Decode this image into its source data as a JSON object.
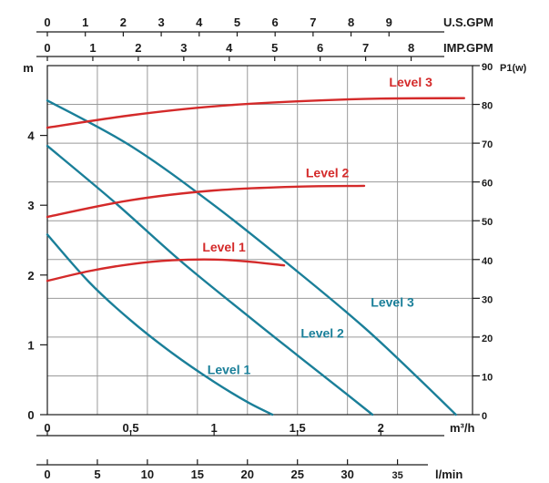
{
  "chart_data": {
    "type": "line",
    "title": "",
    "colors": {
      "head": "#1a7f99",
      "power": "#d42a2a",
      "grid": "#9a9a9a",
      "axis": "#1a1a1a"
    },
    "axes": {
      "x_m3h": {
        "label": "m³/h",
        "range": [
          0,
          2.55
        ],
        "ticks": [
          "0",
          "0.5",
          "1",
          "1.5",
          "2"
        ]
      },
      "x_lmin": {
        "label": "l/min",
        "range": [
          0,
          42.5
        ],
        "ticks": [
          "0",
          "5",
          "10",
          "15",
          "20",
          "25",
          "30",
          "35"
        ]
      },
      "x_usgpm": {
        "label": "U.S.GPM",
        "range": [
          0,
          11.2
        ],
        "ticks": [
          "0",
          "1",
          "2",
          "3",
          "4",
          "5",
          "6",
          "7",
          "8",
          "9"
        ]
      },
      "x_impgpm": {
        "label": "IMP.GPM",
        "range": [
          0,
          9.35
        ],
        "ticks": [
          "0",
          "1",
          "2",
          "3",
          "4",
          "5",
          "6",
          "7",
          "8"
        ]
      },
      "y_head": {
        "label": "m",
        "range": [
          0,
          5
        ],
        "ticks": [
          "0",
          "1",
          "2",
          "3",
          "4"
        ]
      },
      "y_power": {
        "label": "P1(w)",
        "range": [
          0,
          90
        ],
        "ticks": [
          "0",
          "10",
          "20",
          "30",
          "40",
          "50",
          "60",
          "70",
          "80",
          "90"
        ]
      }
    },
    "series": [
      {
        "name": "Level 1",
        "kind": "head",
        "axis": "y_head",
        "x": [
          0,
          0.25,
          0.5,
          0.75,
          1.0,
          1.2,
          1.35
        ],
        "y": [
          2.58,
          1.9,
          1.35,
          0.88,
          0.47,
          0.18,
          0
        ]
      },
      {
        "name": "Level 2",
        "kind": "head",
        "axis": "y_head",
        "x": [
          0,
          0.4,
          0.8,
          1.2,
          1.5,
          1.75,
          1.95
        ],
        "y": [
          3.85,
          3.05,
          2.2,
          1.42,
          0.85,
          0.38,
          0
        ]
      },
      {
        "name": "Level 3",
        "kind": "head",
        "axis": "y_head",
        "x": [
          0,
          0.5,
          1.0,
          1.5,
          1.9,
          2.2,
          2.45
        ],
        "y": [
          4.5,
          3.85,
          3.0,
          2.05,
          1.25,
          0.58,
          0
        ]
      },
      {
        "name": "Level 1",
        "kind": "power",
        "axis": "y_power",
        "x": [
          0,
          0.25,
          0.5,
          0.75,
          1.0,
          1.2,
          1.42
        ],
        "y": [
          34.5,
          37,
          38.8,
          39.8,
          40,
          39.5,
          38.5
        ]
      },
      {
        "name": "Level 2",
        "kind": "power",
        "axis": "y_power",
        "x": [
          0,
          0.5,
          1.0,
          1.5,
          1.9
        ],
        "y": [
          51,
          55.3,
          57.8,
          58.8,
          59
        ]
      },
      {
        "name": "Level 3",
        "kind": "power",
        "axis": "y_power",
        "x": [
          0,
          0.5,
          1.0,
          1.5,
          2.0,
          2.5
        ],
        "y": [
          74,
          77.2,
          79.5,
          80.8,
          81.5,
          81.6
        ]
      }
    ],
    "annotations": [
      {
        "text": "Level 3",
        "kind": "power",
        "x": 2.05,
        "y_head": 4.7
      },
      {
        "text": "Level 2",
        "kind": "power",
        "x": 1.55,
        "y_head": 3.4
      },
      {
        "text": "Level 1",
        "kind": "power",
        "x": 0.93,
        "y_head": 2.34
      },
      {
        "text": "Level 3",
        "kind": "head",
        "x": 1.94,
        "y_head": 1.55
      },
      {
        "text": "Level 2",
        "kind": "head",
        "x": 1.52,
        "y_head": 1.1
      },
      {
        "text": "Level 1",
        "kind": "head",
        "x": 0.96,
        "y_head": 0.58
      }
    ]
  }
}
